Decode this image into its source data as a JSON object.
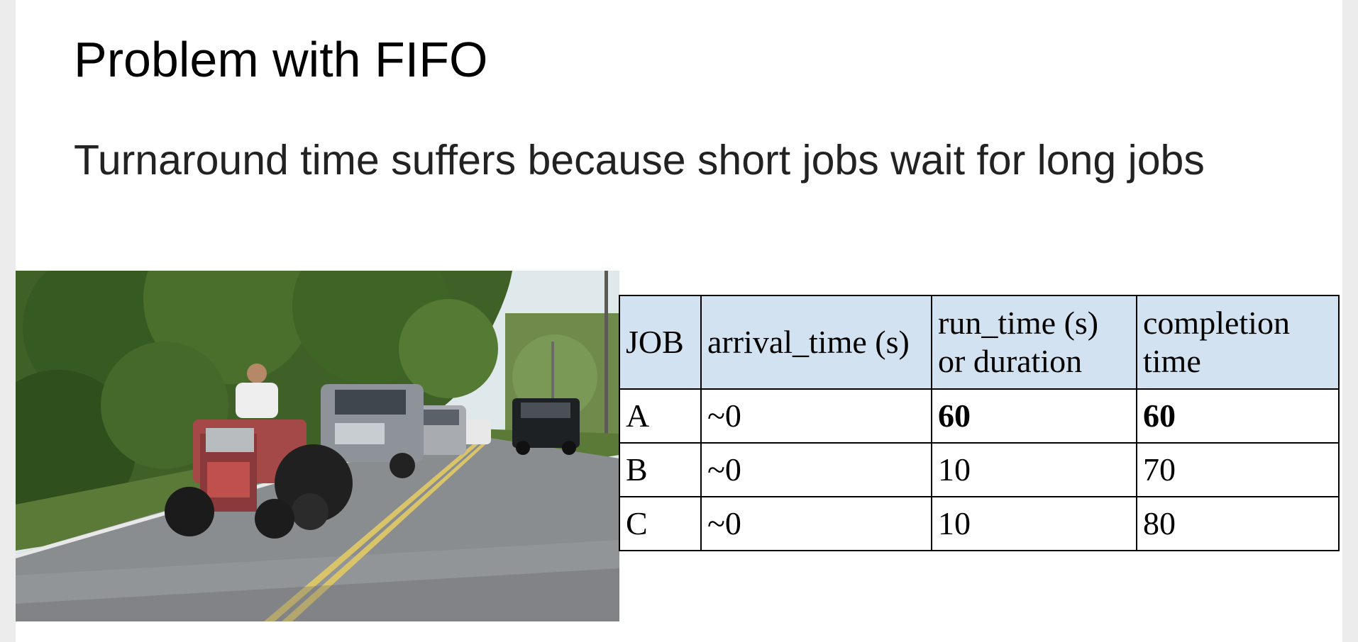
{
  "slide": {
    "title": "Problem with FIFO",
    "subtitle": "Turnaround time suffers because short jobs wait for long jobs"
  },
  "table": {
    "headers": {
      "job": "JOB",
      "arrival": "arrival_time (s)",
      "run_line1": "run_time (s)",
      "run_line2": "or duration",
      "completion_line1": "completion",
      "completion_line2": "time"
    },
    "rows": [
      {
        "job": "A",
        "arrival": "~0",
        "run": "60",
        "completion": "60"
      },
      {
        "job": "B",
        "arrival": "~0",
        "run": "10",
        "completion": "70"
      },
      {
        "job": "C",
        "arrival": "~0",
        "run": "10",
        "completion": "80"
      }
    ],
    "header_color": "#d3e2f1"
  },
  "photo": {
    "icon": "tractor-traffic-photo"
  }
}
